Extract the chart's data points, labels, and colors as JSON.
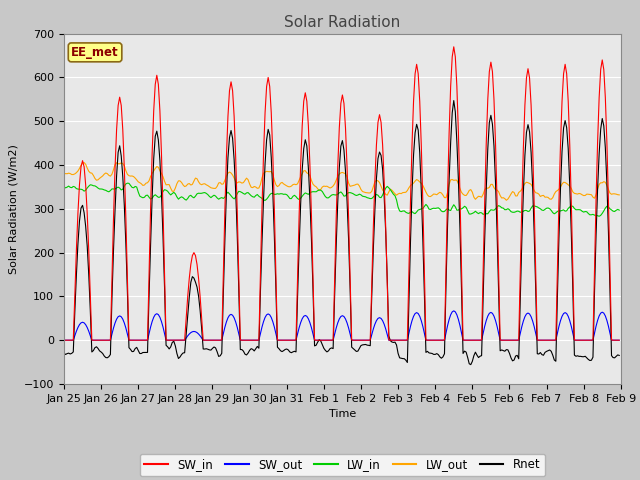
{
  "title": "Solar Radiation",
  "xlabel": "Time",
  "ylabel": "Solar Radiation (W/m2)",
  "ylim": [
    -100,
    700
  ],
  "xlim": [
    0,
    360
  ],
  "tick_labels": [
    "Jan 25",
    "Jan 26",
    "Jan 27",
    "Jan 28",
    "Jan 29",
    "Jan 30",
    "Jan 31",
    "Feb 1",
    "Feb 2",
    "Feb 3",
    "Feb 4",
    "Feb 5",
    "Feb 6",
    "Feb 7",
    "Feb 8",
    "Feb 9"
  ],
  "tick_positions": [
    0,
    24,
    48,
    72,
    96,
    120,
    144,
    168,
    192,
    216,
    240,
    264,
    288,
    312,
    336,
    360
  ],
  "station_label": "EE_met",
  "colors": {
    "SW_in": "#FF0000",
    "SW_out": "#0000FF",
    "LW_in": "#00CC00",
    "LW_out": "#FFA500",
    "Rnet": "#000000"
  },
  "legend_labels": [
    "SW_in",
    "SW_out",
    "LW_in",
    "LW_out",
    "Rnet"
  ],
  "fig_facecolor": "#C8C8C8",
  "plot_facecolor": "#E8E8E8",
  "n_hours": 360,
  "yticks": [
    -100,
    0,
    100,
    200,
    300,
    400,
    500,
    600,
    700
  ]
}
